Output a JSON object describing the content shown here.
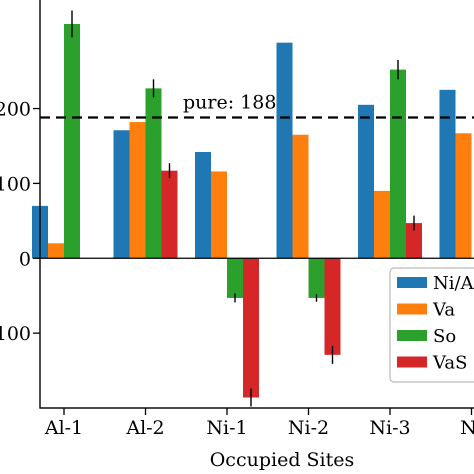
{
  "chart_data": {
    "type": "bar",
    "title": "",
    "xlabel": "Occupied Sites",
    "ylabel": "",
    "categories": [
      "Al-1",
      "Al-2",
      "Ni-1",
      "Ni-2",
      "Ni-3",
      "Ni"
    ],
    "ylim": [
      -200,
      345
    ],
    "yticks": [
      -100,
      0,
      100,
      200
    ],
    "ytick_labels": [
      "100",
      "0",
      "100",
      "200"
    ],
    "series": [
      {
        "name": "Ni/A",
        "color": "#1f77b4",
        "values": [
          70,
          171,
          142,
          288,
          205,
          225
        ],
        "errors": [
          0,
          0,
          0,
          0,
          0,
          0
        ]
      },
      {
        "name": "Va",
        "color": "#ff7f0e",
        "values": [
          20,
          182,
          116,
          165,
          90,
          167
        ],
        "errors": [
          0,
          0,
          0,
          0,
          0,
          0
        ]
      },
      {
        "name": "So",
        "color": "#2ca02c",
        "values": [
          313,
          227,
          -53,
          -53,
          252,
          null
        ],
        "errors": [
          18,
          12,
          6,
          5,
          13,
          0
        ]
      },
      {
        "name": "VaS",
        "color": "#d62728",
        "values": [
          null,
          117,
          -186,
          -129,
          47,
          null
        ],
        "errors": [
          0,
          10,
          12,
          12,
          10,
          0
        ]
      }
    ],
    "reference_line": {
      "value": 188,
      "label": "pure: 188",
      "style": "dashed"
    },
    "legend": {
      "position": "right",
      "entries": [
        "Ni/A",
        "Va",
        "So",
        "VaS"
      ]
    },
    "grid": false
  }
}
